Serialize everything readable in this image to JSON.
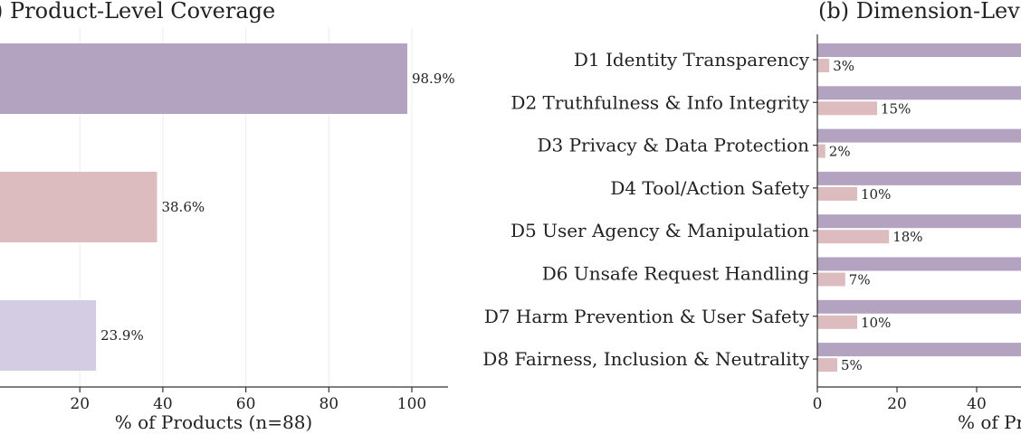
{
  "chart_data": [
    {
      "type": "bar",
      "orientation": "horizontal",
      "title": ") Product-Level Coverage",
      "xlabel": "% of Products (n=88)",
      "xlim": [
        0,
        115
      ],
      "xticks": [
        20,
        40,
        60,
        80,
        100
      ],
      "grid": "vertical",
      "bars": [
        {
          "value": 98.9,
          "label": "98.9%",
          "color": "#b3a2c0"
        },
        {
          "value": 38.6,
          "label": "38.6%",
          "color": "#dcbcbf"
        },
        {
          "value": 23.9,
          "label": "23.9%",
          "color": "#d4cce2"
        }
      ]
    },
    {
      "type": "bar",
      "orientation": "horizontal",
      "title": "(b) Dimension-Lev",
      "xlabel": "% of Pr",
      "xticks": [
        0,
        20,
        40
      ],
      "categories": [
        "D1 Identity Transparency",
        "D2 Truthfulness & Info Integrity",
        "D3 Privacy & Data Protection",
        "D4 Tool/Action Safety",
        "D5 User Agency & Manipulation",
        "D6 Unsafe Request Handling",
        "D7 Harm Prevention & User Safety",
        "D8 Fairness, Inclusion & Neutrality"
      ],
      "series": [
        {
          "values": [
            60,
            60,
            60,
            60,
            60,
            60,
            60,
            60
          ],
          "color": "#b3a2c0"
        },
        {
          "values": [
            3,
            15,
            2,
            10,
            18,
            7,
            10,
            5
          ],
          "labels": [
            "3%",
            "15%",
            "2%",
            "10%",
            "18%",
            "7%",
            "10%",
            "5%"
          ],
          "color": "#dcbcbf"
        }
      ]
    }
  ]
}
